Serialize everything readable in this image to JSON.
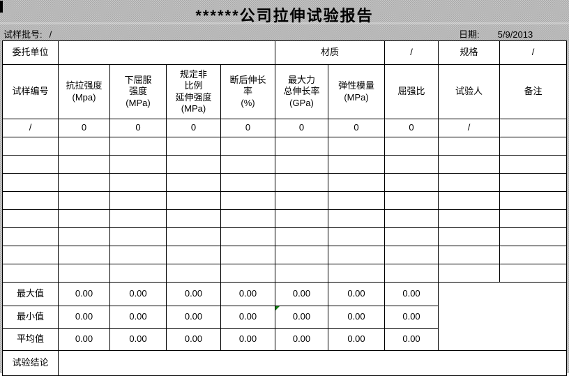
{
  "window": {
    "title_text": "******公司拉伸试验报告"
  },
  "header_band": {
    "batch_label": "试样批号:",
    "batch_value": "/",
    "date_label": "日期:",
    "date_value": "5/9/2013"
  },
  "info_row": {
    "client_label": "委托单位",
    "client_value": "",
    "material_label": "材质",
    "material_value": "/",
    "spec_label": "规格",
    "spec_value": "/"
  },
  "table": {
    "headers": [
      "试样编号",
      "抗拉强度\n(Mpa)",
      "下屈服\n强度\n(MPa)",
      "规定非\n比例\n延伸强度\n(MPa)",
      "断后伸长\n率\n(%)",
      "最大力\n总伸长率\n(GPa)",
      "弹性模量\n(MPa)",
      "屈强比",
      "试验人",
      "备注"
    ],
    "data_rows": [
      [
        "/",
        "0",
        "0",
        "0",
        "0",
        "0",
        "0",
        "0",
        "/",
        ""
      ],
      [
        "",
        "",
        "",
        "",
        "",
        "",
        "",
        "",
        "",
        ""
      ],
      [
        "",
        "",
        "",
        "",
        "",
        "",
        "",
        "",
        "",
        ""
      ],
      [
        "",
        "",
        "",
        "",
        "",
        "",
        "",
        "",
        "",
        ""
      ],
      [
        "",
        "",
        "",
        "",
        "",
        "",
        "",
        "",
        "",
        ""
      ],
      [
        "",
        "",
        "",
        "",
        "",
        "",
        "",
        "",
        "",
        ""
      ],
      [
        "",
        "",
        "",
        "",
        "",
        "",
        "",
        "",
        "",
        ""
      ],
      [
        "",
        "",
        "",
        "",
        "",
        "",
        "",
        "",
        "",
        ""
      ],
      [
        "",
        "",
        "",
        "",
        "",
        "",
        "",
        "",
        "",
        ""
      ]
    ],
    "summary_rows": [
      {
        "label": "最大值",
        "values": [
          "0.00",
          "0.00",
          "0.00",
          "0.00",
          "0.00",
          "0.00",
          "0.00"
        ]
      },
      {
        "label": "最小值",
        "values": [
          "0.00",
          "0.00",
          "0.00",
          "0.00",
          "0.00",
          "0.00",
          "0.00"
        ]
      },
      {
        "label": "平均值",
        "values": [
          "0.00",
          "0.00",
          "0.00",
          "0.00",
          "0.00",
          "0.00",
          "0.00"
        ]
      }
    ],
    "summary_side_value": "",
    "conclusion_label": "试验结论",
    "conclusion_value": ""
  },
  "error_marker": {
    "summary_row_index": 1,
    "value_index": 4,
    "color": "#107c10"
  },
  "colors": {
    "noise_gray": "#b5b5b5",
    "border_black": "#000000",
    "error_green": "#107c10"
  }
}
